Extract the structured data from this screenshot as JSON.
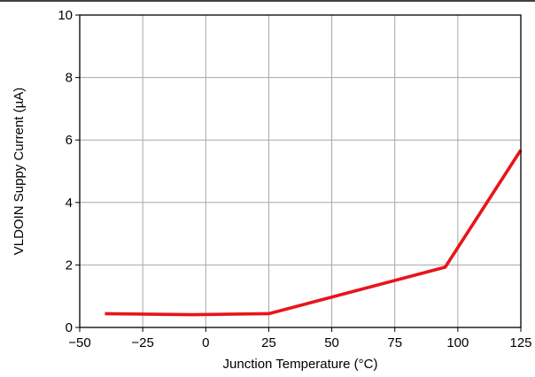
{
  "chart_data": {
    "type": "line",
    "title": "",
    "xlabel": "Junction Temperature (°C)",
    "ylabel": "VLDOIN Suppy Current (µA)",
    "xlim": [
      -50,
      125
    ],
    "ylim": [
      0,
      10
    ],
    "x_ticks": [
      -50,
      -25,
      0,
      25,
      50,
      75,
      100,
      125
    ],
    "x_tick_labels": [
      "−50",
      "−25",
      "0",
      "25",
      "50",
      "75",
      "100",
      "125"
    ],
    "y_ticks": [
      0,
      2,
      4,
      6,
      8,
      10
    ],
    "y_tick_labels": [
      "0",
      "2",
      "4",
      "6",
      "8",
      "10"
    ],
    "grid": true,
    "legend": "none",
    "series": [
      {
        "color": "#e8141b",
        "x": [
          -40,
          -5,
          25,
          95,
          125
        ],
        "y": [
          0.44,
          0.41,
          0.44,
          1.93,
          5.68
        ]
      }
    ],
    "colors": {
      "line": "#e8141b",
      "grid": "#a6a6a6",
      "frame": "#000000"
    }
  }
}
